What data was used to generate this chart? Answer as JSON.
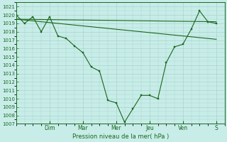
{
  "background_color": "#c8ede8",
  "grid_color": "#a8d4cc",
  "line_color": "#1a6620",
  "xlabel": "Pression niveau de la mer( hPa )",
  "ylim": [
    1007,
    1021.5
  ],
  "yticks": [
    1007,
    1008,
    1009,
    1010,
    1011,
    1012,
    1013,
    1014,
    1015,
    1016,
    1017,
    1018,
    1019,
    1020,
    1021
  ],
  "day_labels": [
    "Dim",
    "Mar",
    "Mer",
    "Jeu",
    "Ven",
    "S"
  ],
  "day_positions": [
    2,
    4,
    6,
    8,
    10,
    12
  ],
  "xlim": [
    0,
    12.5
  ],
  "series1": {
    "x": [
      0,
      0.5,
      1,
      1.5,
      2,
      2.5,
      3,
      3.5,
      4,
      4.5,
      5,
      5.5,
      6,
      6.5,
      7,
      7.5,
      8,
      8.5,
      9,
      9.5,
      10,
      10.5,
      11,
      11.5,
      12
    ],
    "y": [
      1020.0,
      1019.0,
      1019.8,
      1018.0,
      1019.8,
      1017.5,
      1017.2,
      1016.3,
      1015.5,
      1013.8,
      1013.3,
      1009.8,
      1009.5,
      1007.2,
      1008.8,
      1010.4,
      1010.4,
      1010.0,
      1014.3,
      1016.2,
      1016.5,
      1018.3,
      1020.5,
      1019.2,
      1019.0
    ]
  },
  "series2": {
    "x": [
      0,
      12
    ],
    "y": [
      1019.5,
      1019.2
    ]
  },
  "series3": {
    "x": [
      0,
      12
    ],
    "y": [
      1019.5,
      1017.1
    ]
  }
}
